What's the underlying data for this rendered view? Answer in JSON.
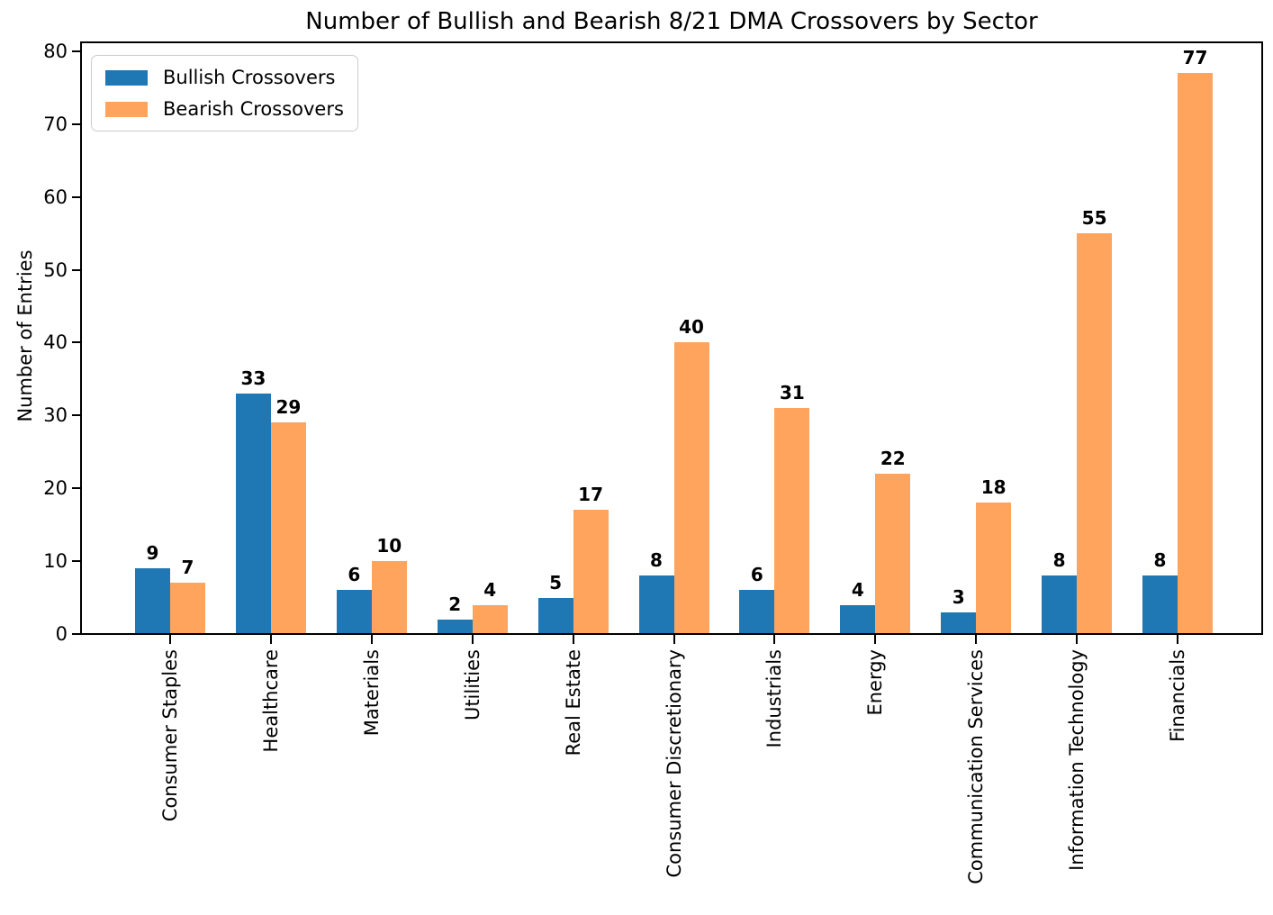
{
  "chart_data": {
    "type": "bar",
    "title": "Number of Bullish and Bearish 8/21 DMA Crossovers by Sector",
    "xlabel": "",
    "ylabel": "Number of Entries",
    "categories": [
      "Consumer Staples",
      "Healthcare",
      "Materials",
      "Utilities",
      "Real Estate",
      "Consumer Discretionary",
      "Industrials",
      "Energy",
      "Communication Services",
      "Information Technology",
      "Financials"
    ],
    "series": [
      {
        "name": "Bullish Crossovers",
        "color": "#1f77b4",
        "values": [
          9,
          33,
          6,
          2,
          5,
          8,
          6,
          4,
          3,
          8,
          8
        ]
      },
      {
        "name": "Bearish Crossovers",
        "color": "#ffa45c",
        "values": [
          7,
          29,
          10,
          4,
          17,
          40,
          31,
          22,
          18,
          55,
          77
        ]
      }
    ],
    "ylim": [
      0,
      80
    ],
    "yticks": [
      0,
      10,
      20,
      30,
      40,
      50,
      60,
      70,
      80
    ],
    "legend_position": "upper left",
    "grid": false,
    "value_labels": true,
    "bar_value_label_color": "#000000",
    "axis_color": "#000000",
    "background_color": "#ffffff"
  }
}
